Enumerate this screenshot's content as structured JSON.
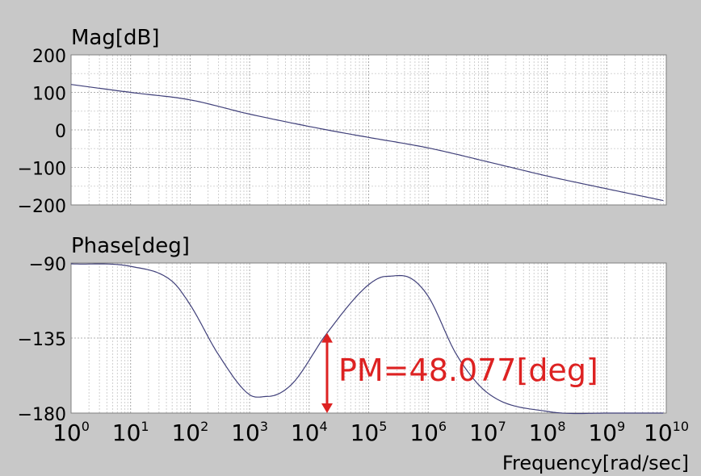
{
  "chart_data": [
    {
      "type": "line",
      "title": "Mag[dB]",
      "x_scale": "log",
      "xlim": [
        1,
        10000000000
      ],
      "ylim": [
        -200,
        200
      ],
      "yticks": [
        "200",
        "100",
        "0",
        "−100",
        "−200"
      ],
      "grid": true,
      "series": [
        {
          "x": [
            1,
            10,
            100,
            1000,
            20000,
            100000,
            1000000,
            10000000,
            100000000,
            1000000000,
            10000000000
          ],
          "y": [
            121,
            100,
            80,
            42,
            0,
            -20,
            -48,
            -85,
            -123,
            -157,
            -190
          ]
        }
      ]
    },
    {
      "type": "line",
      "title": "Phase[deg]",
      "x_scale": "log",
      "xlim": [
        1,
        10000000000
      ],
      "ylim": [
        -180,
        -90
      ],
      "yticks": [
        "−90",
        "−135",
        "−180"
      ],
      "xticks": [
        "10^0",
        "10^1",
        "10^2",
        "10^3",
        "10^4",
        "10^5",
        "10^6",
        "10^7",
        "10^8",
        "10^9",
        "10^10"
      ],
      "xlabel": "Frequency[rad/sec]",
      "grid": true,
      "series": [
        {
          "x": [
            1,
            10,
            50,
            100,
            300,
            1000,
            2000,
            5000,
            20000,
            100000,
            200000,
            500000,
            1000000,
            3000000,
            10000000,
            100000000,
            1000000000,
            10000000000
          ],
          "y": [
            -90.5,
            -92,
            -101,
            -115,
            -145,
            -169,
            -170,
            -163,
            -132,
            -103,
            -98,
            -99,
            -110,
            -145,
            -168,
            -179,
            -180,
            -180
          ]
        }
      ],
      "annotation": {
        "text": "PM=48.077[deg]",
        "x": 20000,
        "y_from": -131.923,
        "y_to": -180,
        "color": "#dd2222"
      }
    }
  ]
}
